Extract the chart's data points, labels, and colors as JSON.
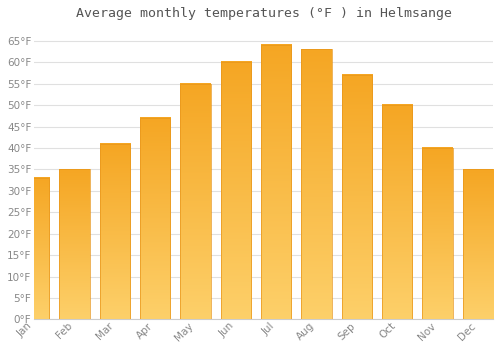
{
  "title": "Average monthly temperatures (°F ) in Helmsange",
  "months": [
    "Jan",
    "Feb",
    "Mar",
    "Apr",
    "May",
    "Jun",
    "Jul",
    "Aug",
    "Sep",
    "Oct",
    "Nov",
    "Dec"
  ],
  "values": [
    33,
    35,
    41,
    47,
    55,
    60,
    64,
    63,
    57,
    50,
    40,
    35
  ],
  "bar_color_top": "#F5A623",
  "bar_color_bottom": "#FDD06A",
  "bar_edge_color": "#E8951A",
  "plot_bg_color": "#ffffff",
  "fig_bg_color": "#ffffff",
  "grid_color": "#e0e0e0",
  "ylim": [
    0,
    68
  ],
  "yticks": [
    0,
    5,
    10,
    15,
    20,
    25,
    30,
    35,
    40,
    45,
    50,
    55,
    60,
    65
  ],
  "tick_label_color": "#888888",
  "title_fontsize": 9.5,
  "tick_fontsize": 7.5,
  "bar_width": 0.75
}
